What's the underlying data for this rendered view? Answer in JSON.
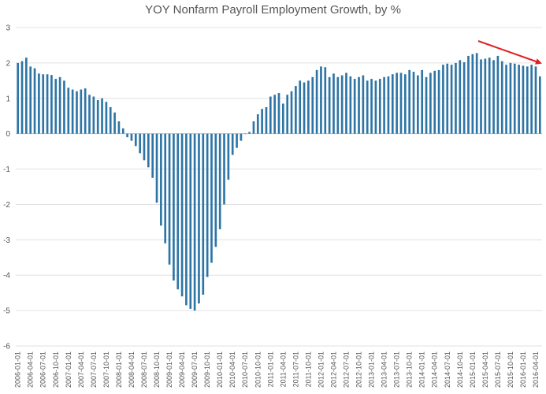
{
  "chart_data": {
    "type": "bar",
    "title": "YOY Nonfarm Payroll Employment Growth, by %",
    "xlabel": "",
    "ylabel": "",
    "ylim": [
      -6,
      3
    ],
    "yticks": [
      3,
      2,
      1,
      0,
      -1,
      -2,
      -3,
      -4,
      -5,
      -6
    ],
    "grid": true,
    "bar_color": "#2e75a6",
    "annotation": {
      "type": "arrow",
      "color": "#e02020",
      "description": "red arrow pointing down-right at the latest bars"
    },
    "categories": [
      "2006-01-01",
      "2006-02-01",
      "2006-03-01",
      "2006-04-01",
      "2006-05-01",
      "2006-06-01",
      "2006-07-01",
      "2006-08-01",
      "2006-09-01",
      "2006-10-01",
      "2006-11-01",
      "2006-12-01",
      "2007-01-01",
      "2007-02-01",
      "2007-03-01",
      "2007-04-01",
      "2007-05-01",
      "2007-06-01",
      "2007-07-01",
      "2007-08-01",
      "2007-09-01",
      "2007-10-01",
      "2007-11-01",
      "2007-12-01",
      "2008-01-01",
      "2008-02-01",
      "2008-03-01",
      "2008-04-01",
      "2008-05-01",
      "2008-06-01",
      "2008-07-01",
      "2008-08-01",
      "2008-09-01",
      "2008-10-01",
      "2008-11-01",
      "2008-12-01",
      "2009-01-01",
      "2009-02-01",
      "2009-03-01",
      "2009-04-01",
      "2009-05-01",
      "2009-06-01",
      "2009-07-01",
      "2009-08-01",
      "2009-09-01",
      "2009-10-01",
      "2009-11-01",
      "2009-12-01",
      "2010-01-01",
      "2010-02-01",
      "2010-03-01",
      "2010-04-01",
      "2010-05-01",
      "2010-06-01",
      "2010-07-01",
      "2010-08-01",
      "2010-09-01",
      "2010-10-01",
      "2010-11-01",
      "2010-12-01",
      "2011-01-01",
      "2011-02-01",
      "2011-03-01",
      "2011-04-01",
      "2011-05-01",
      "2011-06-01",
      "2011-07-01",
      "2011-08-01",
      "2011-09-01",
      "2011-10-01",
      "2011-11-01",
      "2011-12-01",
      "2012-01-01",
      "2012-02-01",
      "2012-03-01",
      "2012-04-01",
      "2012-05-01",
      "2012-06-01",
      "2012-07-01",
      "2012-08-01",
      "2012-09-01",
      "2012-10-01",
      "2012-11-01",
      "2012-12-01",
      "2013-01-01",
      "2013-02-01",
      "2013-03-01",
      "2013-04-01",
      "2013-05-01",
      "2013-06-01",
      "2013-07-01",
      "2013-08-01",
      "2013-09-01",
      "2013-10-01",
      "2013-11-01",
      "2013-12-01",
      "2014-01-01",
      "2014-02-01",
      "2014-03-01",
      "2014-04-01",
      "2014-05-01",
      "2014-06-01",
      "2014-07-01",
      "2014-08-01",
      "2014-09-01",
      "2014-10-01",
      "2014-11-01",
      "2014-12-01",
      "2015-01-01",
      "2015-02-01",
      "2015-03-01",
      "2015-04-01",
      "2015-05-01",
      "2015-06-01",
      "2015-07-01",
      "2015-08-01",
      "2015-09-01",
      "2015-10-01",
      "2015-11-01",
      "2015-12-01",
      "2016-01-01",
      "2016-02-01",
      "2016-03-01",
      "2016-04-01",
      "2016-05-01"
    ],
    "tick_labels": [
      "2006-01-01",
      "2006-04-01",
      "2006-07-01",
      "2006-10-01",
      "2007-01-01",
      "2007-04-01",
      "2007-07-01",
      "2007-10-01",
      "2008-01-01",
      "2008-04-01",
      "2008-07-01",
      "2008-10-01",
      "2009-01-01",
      "2009-04-01",
      "2009-07-01",
      "2009-10-01",
      "2010-01-01",
      "2010-04-01",
      "2010-07-01",
      "2010-10-01",
      "2011-01-01",
      "2011-04-01",
      "2011-07-01",
      "2011-10-01",
      "2012-01-01",
      "2012-04-01",
      "2012-07-01",
      "2012-10-01",
      "2013-01-01",
      "2013-04-01",
      "2013-07-01",
      "2013-10-01",
      "2014-01-01",
      "2014-04-01",
      "2014-07-01",
      "2014-10-01",
      "2015-01-01",
      "2015-04-01",
      "2015-07-01",
      "2015-10-01",
      "2016-01-01",
      "2016-04-01"
    ],
    "values": [
      2.0,
      2.05,
      2.15,
      1.9,
      1.85,
      1.7,
      1.68,
      1.68,
      1.66,
      1.55,
      1.6,
      1.5,
      1.3,
      1.25,
      1.2,
      1.25,
      1.28,
      1.1,
      1.05,
      0.95,
      1.0,
      0.9,
      0.75,
      0.6,
      0.35,
      0.15,
      -0.1,
      -0.2,
      -0.35,
      -0.55,
      -0.75,
      -0.95,
      -1.25,
      -1.95,
      -2.6,
      -3.1,
      -3.7,
      -4.15,
      -4.4,
      -4.6,
      -4.85,
      -4.95,
      -5.0,
      -4.8,
      -4.55,
      -4.05,
      -3.65,
      -3.2,
      -2.7,
      -2.0,
      -1.3,
      -0.6,
      -0.4,
      -0.2,
      0.0,
      0.05,
      0.35,
      0.55,
      0.7,
      0.75,
      1.05,
      1.1,
      1.15,
      0.85,
      1.1,
      1.2,
      1.35,
      1.5,
      1.45,
      1.5,
      1.6,
      1.8,
      1.9,
      1.88,
      1.6,
      1.7,
      1.6,
      1.65,
      1.72,
      1.62,
      1.55,
      1.6,
      1.65,
      1.5,
      1.55,
      1.5,
      1.55,
      1.6,
      1.62,
      1.68,
      1.72,
      1.72,
      1.68,
      1.8,
      1.75,
      1.65,
      1.8,
      1.6,
      1.72,
      1.78,
      1.8,
      1.95,
      1.98,
      1.95,
      2.0,
      2.08,
      2.02,
      2.2,
      2.25,
      2.28,
      2.1,
      2.12,
      2.15,
      2.08,
      2.2,
      2.05,
      1.95,
      2.0,
      1.98,
      1.95,
      1.92,
      1.9,
      1.95,
      1.9,
      1.62
    ]
  }
}
